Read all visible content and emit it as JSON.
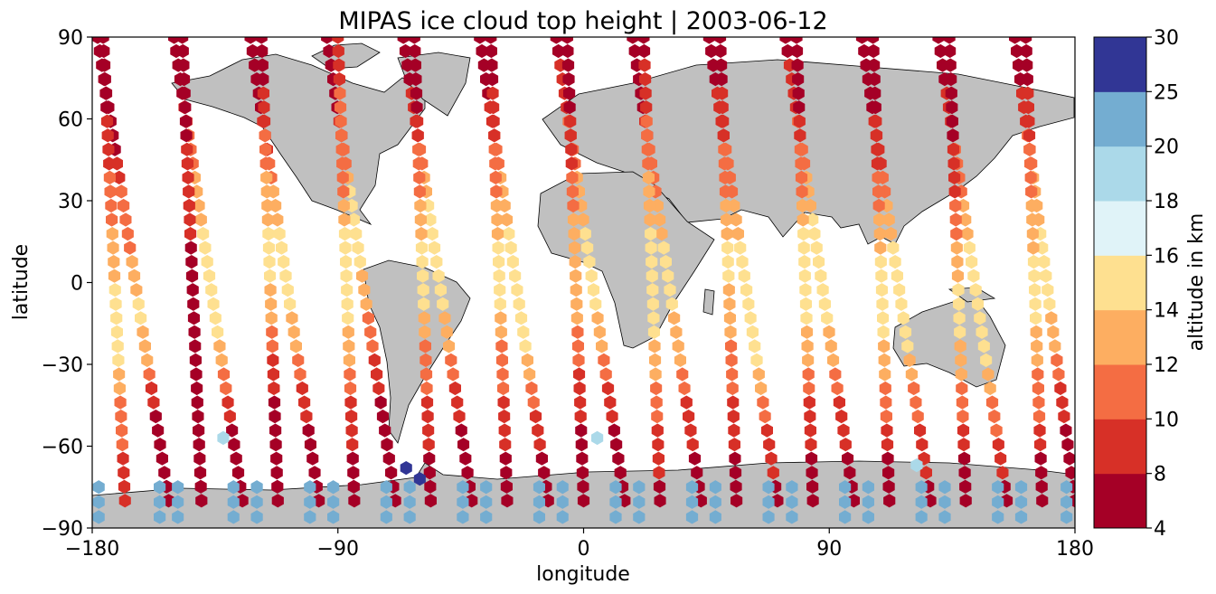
{
  "chart_data": {
    "type": "scatter",
    "title": "MIPAS ice cloud top height | 2003-06-12",
    "xlabel": "longitude",
    "ylabel": "latitude",
    "xlim": [
      -180,
      180
    ],
    "ylim": [
      -90,
      90
    ],
    "xticks": [
      -180,
      -90,
      0,
      90,
      180
    ],
    "yticks": [
      -90,
      -60,
      -30,
      0,
      30,
      60,
      90
    ],
    "xtick_labels": [
      "−180",
      "−90",
      "0",
      "90",
      "180"
    ],
    "ytick_labels": [
      "−90",
      "−60",
      "−30",
      "0",
      "30",
      "60",
      "90"
    ],
    "grid": false,
    "background_map": "coastlines with land in grey",
    "land_color": "#c0c0c0",
    "colorbar": {
      "label": "altitude in km",
      "bounds": [
        4,
        8,
        10,
        12,
        14,
        16,
        18,
        20,
        25,
        30
      ],
      "tick_labels": [
        "4",
        "8",
        "10",
        "12",
        "14",
        "16",
        "18",
        "20",
        "25",
        "30"
      ],
      "colors": [
        "#a50026",
        "#d73027",
        "#f46d43",
        "#fdae61",
        "#fee090",
        "#e0f3f8",
        "#abd9e9",
        "#74add1",
        "#313695"
      ]
    },
    "orbits": [
      {
        "lat": [
          90,
          -80
        ],
        "lon": [
          -178,
          -152
        ],
        "km": [
          6,
          6,
          7,
          11,
          12,
          15,
          12,
          7,
          6,
          8
        ]
      },
      {
        "lat": [
          -80,
          90
        ],
        "lon": [
          -168,
          -176
        ],
        "km": [
          6,
          7,
          9,
          11,
          13,
          15,
          14,
          11,
          9,
          7
        ]
      },
      {
        "lat": [
          90,
          -80
        ],
        "lon": [
          -150,
          -125
        ],
        "km": [
          6,
          7,
          11,
          13,
          15,
          16,
          12,
          8,
          6,
          7
        ]
      },
      {
        "lat": [
          -80,
          90
        ],
        "lon": [
          -140,
          -147
        ],
        "km": [
          6,
          6,
          8,
          10,
          7,
          6,
          7,
          6,
          6,
          7
        ]
      },
      {
        "lat": [
          90,
          -80
        ],
        "lon": [
          -122,
          -97
        ],
        "km": [
          6,
          7,
          9,
          13,
          15,
          14,
          11,
          8,
          6,
          7
        ]
      },
      {
        "lat": [
          -80,
          90
        ],
        "lon": [
          -112,
          -118
        ],
        "km": [
          7,
          8,
          11,
          13,
          15,
          13,
          9,
          7,
          6,
          6
        ]
      },
      {
        "lat": [
          90,
          -80
        ],
        "lon": [
          -94,
          -69
        ],
        "km": [
          6,
          7,
          10,
          16,
          15,
          12,
          9,
          7,
          6,
          6
        ]
      },
      {
        "lat": [
          -80,
          90
        ],
        "lon": [
          -84,
          -90
        ],
        "km": [
          8,
          10,
          11,
          12,
          16,
          15,
          12,
          9,
          7,
          7
        ]
      },
      {
        "lat": [
          90,
          -80
        ],
        "lon": [
          -66,
          -41
        ],
        "km": [
          6,
          8,
          10,
          14,
          15,
          14,
          11,
          8,
          6,
          7
        ]
      },
      {
        "lat": [
          -80,
          90
        ],
        "lon": [
          -56,
          -62
        ],
        "km": [
          6,
          7,
          10,
          12,
          15,
          14,
          11,
          9,
          7,
          6
        ]
      },
      {
        "lat": [
          90,
          -80
        ],
        "lon": [
          -38,
          -13
        ],
        "km": [
          6,
          7,
          11,
          13,
          15,
          16,
          13,
          9,
          7,
          7
        ]
      },
      {
        "lat": [
          -80,
          90
        ],
        "lon": [
          -28,
          -34
        ],
        "km": [
          7,
          8,
          10,
          12,
          15,
          14,
          11,
          9,
          7,
          6
        ]
      },
      {
        "lat": [
          90,
          -80
        ],
        "lon": [
          -10,
          15
        ],
        "km": [
          7,
          9,
          11,
          13,
          15,
          14,
          11,
          8,
          6,
          7
        ]
      },
      {
        "lat": [
          -80,
          90
        ],
        "lon": [
          0,
          -6
        ],
        "km": [
          6,
          7,
          9,
          11,
          14,
          13,
          10,
          8,
          6,
          6
        ]
      },
      {
        "lat": [
          90,
          -80
        ],
        "lon": [
          18,
          43
        ],
        "km": [
          6,
          7,
          10,
          12,
          15,
          14,
          12,
          9,
          7,
          7
        ]
      },
      {
        "lat": [
          -80,
          90
        ],
        "lon": [
          28,
          22
        ],
        "km": [
          7,
          9,
          11,
          13,
          15,
          16,
          13,
          10,
          8,
          7
        ]
      },
      {
        "lat": [
          90,
          -80
        ],
        "lon": [
          46,
          71
        ],
        "km": [
          6,
          8,
          10,
          12,
          15,
          16,
          14,
          10,
          8,
          7
        ]
      },
      {
        "lat": [
          -80,
          90
        ],
        "lon": [
          56,
          50
        ],
        "km": [
          7,
          8,
          10,
          12,
          15,
          13,
          11,
          9,
          7,
          6
        ]
      },
      {
        "lat": [
          90,
          -80
        ],
        "lon": [
          74,
          99
        ],
        "km": [
          7,
          9,
          11,
          13,
          16,
          15,
          12,
          9,
          7,
          7
        ]
      },
      {
        "lat": [
          -80,
          90
        ],
        "lon": [
          84,
          78
        ],
        "km": [
          6,
          7,
          10,
          12,
          16,
          15,
          12,
          9,
          7,
          6
        ]
      },
      {
        "lat": [
          90,
          -80
        ],
        "lon": [
          102,
          127
        ],
        "km": [
          6,
          7,
          9,
          12,
          15,
          16,
          13,
          10,
          8,
          7
        ]
      },
      {
        "lat": [
          -80,
          90
        ],
        "lon": [
          112,
          106
        ],
        "km": [
          6,
          7,
          9,
          11,
          14,
          16,
          13,
          10,
          7,
          6
        ]
      },
      {
        "lat": [
          90,
          -80
        ],
        "lon": [
          130,
          155
        ],
        "km": [
          7,
          8,
          10,
          12,
          15,
          16,
          14,
          11,
          8,
          7
        ]
      },
      {
        "lat": [
          -80,
          90
        ],
        "lon": [
          140,
          134
        ],
        "km": [
          6,
          7,
          8,
          10,
          13,
          15,
          13,
          10,
          7,
          6
        ]
      },
      {
        "lat": [
          90,
          -80
        ],
        "lon": [
          158,
          180
        ],
        "km": [
          7,
          8,
          11,
          13,
          15,
          14,
          11,
          8,
          6,
          7
        ]
      },
      {
        "lat": [
          -80,
          90
        ],
        "lon": [
          168,
          162
        ],
        "km": [
          6,
          8,
          10,
          12,
          14,
          15,
          12,
          10,
          7,
          6
        ]
      }
    ],
    "antarctic_band": {
      "lat": [
        -86,
        -72
      ],
      "km": 22
    },
    "highlights": [
      {
        "lon": -65,
        "lat": -68,
        "km": 27
      },
      {
        "lon": -60,
        "lat": -72,
        "km": 27
      },
      {
        "lon": -132,
        "lat": -57,
        "km": 19
      },
      {
        "lon": 5,
        "lat": -57,
        "km": 19
      },
      {
        "lon": 122,
        "lat": -67,
        "km": 19
      }
    ]
  }
}
